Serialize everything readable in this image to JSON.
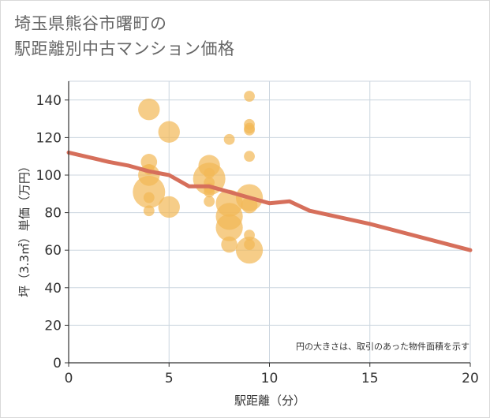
{
  "chart_data": {
    "type": "scatter",
    "title_line1": "埼玉県熊谷市曙町の",
    "title_line2": "駅距離別中古マンション価格",
    "xlabel": "駅距離（分）",
    "ylabel": "坪（3.3㎡）単価（万円）",
    "xlim": [
      0,
      20
    ],
    "ylim": [
      0,
      150
    ],
    "x_ticks": [
      0,
      5,
      10,
      15,
      20
    ],
    "y_ticks": [
      0,
      20,
      40,
      60,
      80,
      100,
      120,
      140
    ],
    "note": "円の大きさは、取引のあった物件面積を示す",
    "colors": {
      "bubble": "#f2b856",
      "line": "#d66f5b",
      "grid": "#ccd6df",
      "axis": "#333333"
    },
    "points": [
      {
        "x": 4,
        "y": 135,
        "size": 3
      },
      {
        "x": 4,
        "y": 107,
        "size": 2
      },
      {
        "x": 4,
        "y": 103,
        "size": 1
      },
      {
        "x": 4,
        "y": 100,
        "size": 3
      },
      {
        "x": 4,
        "y": 91,
        "size": 5
      },
      {
        "x": 4,
        "y": 88,
        "size": 1
      },
      {
        "x": 4,
        "y": 81,
        "size": 1
      },
      {
        "x": 5,
        "y": 123,
        "size": 3
      },
      {
        "x": 5,
        "y": 83,
        "size": 3
      },
      {
        "x": 7,
        "y": 105,
        "size": 3
      },
      {
        "x": 7,
        "y": 101,
        "size": 1
      },
      {
        "x": 7,
        "y": 98,
        "size": 5
      },
      {
        "x": 7,
        "y": 96,
        "size": 1
      },
      {
        "x": 7,
        "y": 93,
        "size": 1
      },
      {
        "x": 7,
        "y": 91,
        "size": 1
      },
      {
        "x": 7,
        "y": 86,
        "size": 1
      },
      {
        "x": 8,
        "y": 119,
        "size": 1
      },
      {
        "x": 8,
        "y": 85,
        "size": 4
      },
      {
        "x": 8,
        "y": 78,
        "size": 4
      },
      {
        "x": 8,
        "y": 72,
        "size": 4
      },
      {
        "x": 8,
        "y": 63,
        "size": 2
      },
      {
        "x": 9,
        "y": 142,
        "size": 1
      },
      {
        "x": 9,
        "y": 127,
        "size": 1
      },
      {
        "x": 9,
        "y": 125,
        "size": 1
      },
      {
        "x": 9,
        "y": 124,
        "size": 1
      },
      {
        "x": 9,
        "y": 110,
        "size": 1
      },
      {
        "x": 9,
        "y": 88,
        "size": 4
      },
      {
        "x": 9,
        "y": 84,
        "size": 2
      },
      {
        "x": 9,
        "y": 68,
        "size": 1
      },
      {
        "x": 9,
        "y": 63,
        "size": 1
      },
      {
        "x": 9,
        "y": 60,
        "size": 4
      }
    ],
    "trend": {
      "x": [
        0,
        2,
        3,
        4,
        5,
        6,
        7,
        8,
        9,
        10,
        11,
        12,
        15,
        20
      ],
      "y": [
        112,
        107,
        105,
        102,
        100,
        94,
        94,
        91,
        88,
        85,
        86,
        81,
        74,
        60
      ]
    }
  }
}
